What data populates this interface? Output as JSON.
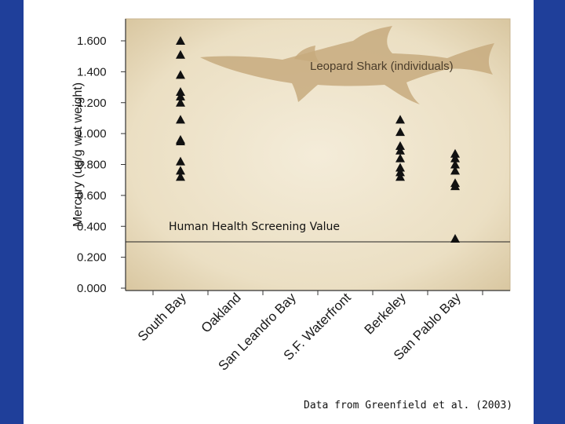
{
  "chart_data": {
    "type": "scatter",
    "marker": "triangle",
    "ylabel": "Mercury (ug/g wet weight)",
    "ylim": [
      0,
      1.6
    ],
    "yticks": [
      "0.000",
      "0.200",
      "0.400",
      "0.600",
      "0.800",
      "1.000",
      "1.200",
      "1.400",
      "1.600"
    ],
    "categories": [
      "South Bay",
      "Oakland",
      "San Leandro Bay",
      "S.F. Waterfront",
      "Berkeley",
      "San Pablo Bay"
    ],
    "series": [
      {
        "name": "Leopard Shark (individuals)",
        "points": [
          {
            "x": "South Bay",
            "y": 1.6
          },
          {
            "x": "South Bay",
            "y": 1.51
          },
          {
            "x": "South Bay",
            "y": 1.38
          },
          {
            "x": "South Bay",
            "y": 1.27
          },
          {
            "x": "South Bay",
            "y": 1.24
          },
          {
            "x": "South Bay",
            "y": 1.2
          },
          {
            "x": "South Bay",
            "y": 1.09
          },
          {
            "x": "South Bay",
            "y": 0.96
          },
          {
            "x": "South Bay",
            "y": 0.95
          },
          {
            "x": "South Bay",
            "y": 0.82
          },
          {
            "x": "South Bay",
            "y": 0.76
          },
          {
            "x": "South Bay",
            "y": 0.72
          },
          {
            "x": "Berkeley",
            "y": 1.09
          },
          {
            "x": "Berkeley",
            "y": 1.01
          },
          {
            "x": "Berkeley",
            "y": 0.92
          },
          {
            "x": "Berkeley",
            "y": 0.89
          },
          {
            "x": "Berkeley",
            "y": 0.84
          },
          {
            "x": "Berkeley",
            "y": 0.78
          },
          {
            "x": "Berkeley",
            "y": 0.75
          },
          {
            "x": "Berkeley",
            "y": 0.72
          },
          {
            "x": "San Pablo Bay",
            "y": 0.87
          },
          {
            "x": "San Pablo Bay",
            "y": 0.84
          },
          {
            "x": "San Pablo Bay",
            "y": 0.8
          },
          {
            "x": "San Pablo Bay",
            "y": 0.76
          },
          {
            "x": "San Pablo Bay",
            "y": 0.68
          },
          {
            "x": "San Pablo Bay",
            "y": 0.66
          },
          {
            "x": "San Pablo Bay",
            "y": 0.32
          }
        ]
      }
    ],
    "reference_line": {
      "label": "Human Health Screening Value",
      "y": 0.3
    },
    "source_note": "Data from Greenfield et al. (2003)",
    "colors": {
      "background": "#1f3f9a",
      "plot_fill": "#efe5cf",
      "shark": "#c7aa7e",
      "marker": "#111111"
    },
    "grid": false
  }
}
